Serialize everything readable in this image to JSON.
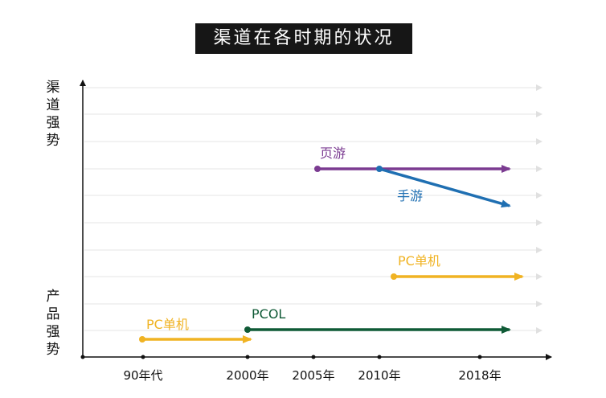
{
  "title": "渠道在各时期的状况",
  "y_axis": {
    "top_label": "渠道强势",
    "bottom_label": "产品强势"
  },
  "x_ticks": [
    "90年代",
    "2000年",
    "2005年",
    "2010年",
    "2018年"
  ],
  "colors": {
    "purple": "#7b3b91",
    "blue": "#1f6fb2",
    "gold": "#f0b323",
    "green": "#0f5a36",
    "axis": "#111111",
    "grid": "#e6e6e6"
  },
  "items": [
    {
      "id": "yeyou",
      "label": "页游",
      "color": "purple"
    },
    {
      "id": "shouyou",
      "label": "手游",
      "color": "blue"
    },
    {
      "id": "pc-new",
      "label": "PC单机",
      "color": "gold"
    },
    {
      "id": "pcol",
      "label": "PCOL",
      "color": "green"
    },
    {
      "id": "pc-old",
      "label": "PC单机",
      "color": "gold"
    }
  ]
}
